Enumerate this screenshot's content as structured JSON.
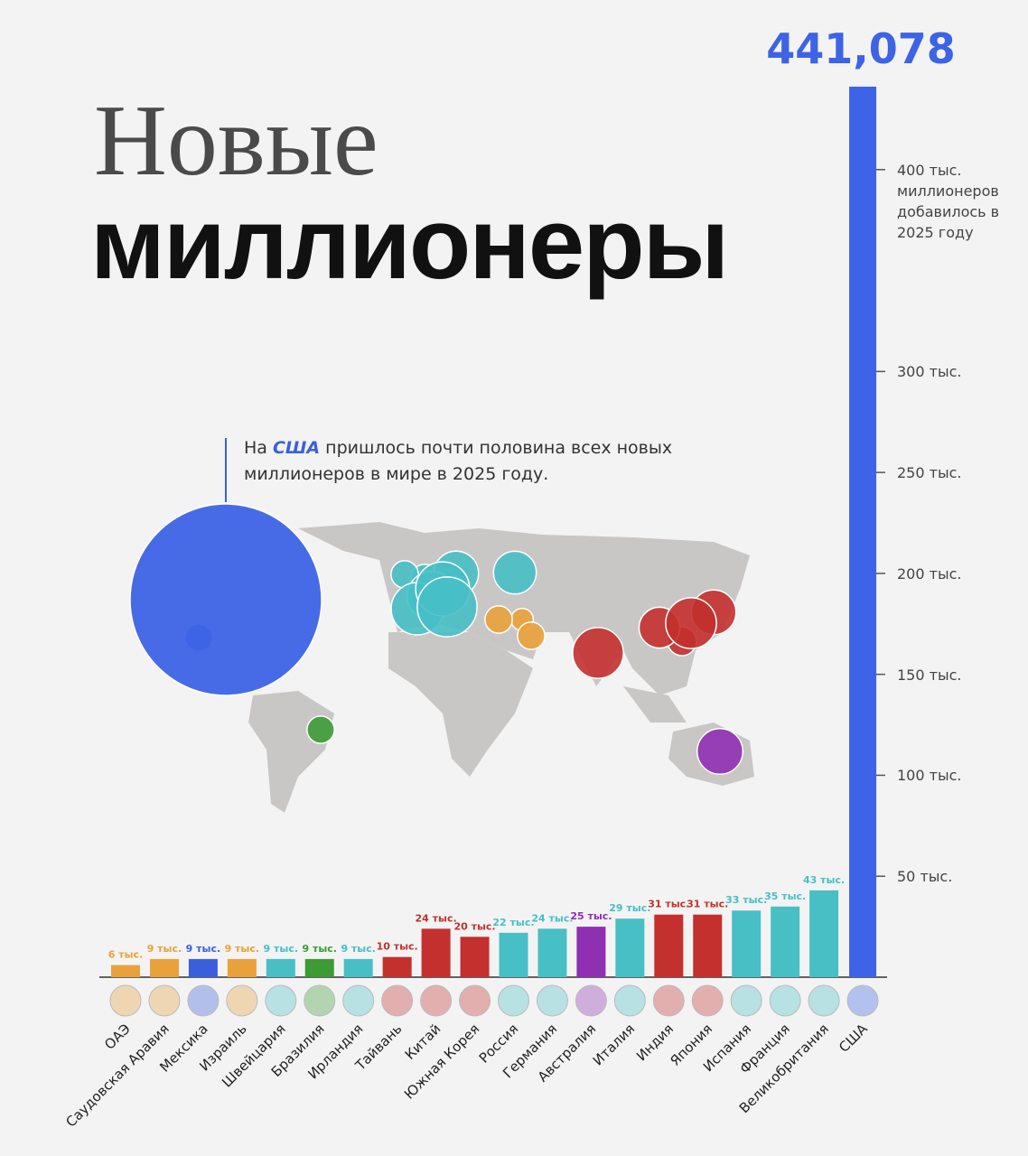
{
  "chart_data": {
    "type": "bar",
    "title": {
      "light": "Новые",
      "bold": "миллионеры"
    },
    "annotation": {
      "before": "На",
      "highlight": "США",
      "after": "пришлось почти половина всех новых миллионеров в мире в 2025 году."
    },
    "categories": [
      "ОАЭ",
      "Саудовская Аравия",
      "Мексика",
      "Израиль",
      "Швейцария",
      "Бразилия",
      "Ирландия",
      "Тайвань",
      "Китай",
      "Южная Корея",
      "Россия",
      "Германия",
      "Австралия",
      "Италия",
      "Индия",
      "Япония",
      "Испания",
      "Франция",
      "Великобритания",
      "США"
    ],
    "values": [
      6000,
      9000,
      9000,
      9000,
      9000,
      9000,
      9000,
      10000,
      24000,
      20000,
      22000,
      24000,
      25000,
      29000,
      31000,
      31000,
      33000,
      35000,
      43000,
      441078
    ],
    "value_labels": [
      "6 тыс.",
      "9 тыс.",
      "9 тыс.",
      "9 тыс.",
      "9 тыс.",
      "9 тыс.",
      "9 тыс.",
      "10 тыс.",
      "24 тыс.",
      "20 тыс.",
      "22 тыс.",
      "24 тыс.",
      "25 тыс.",
      "29 тыс.",
      "31 тыс.",
      "31 тыс.",
      "33 тыс.",
      "35 тыс.",
      "43 тыс.",
      "441,078"
    ],
    "colors": [
      "#e9a13b",
      "#e9a13b",
      "#3b5fdc",
      "#e9a13b",
      "#47bfc5",
      "#3d9a35",
      "#47bfc5",
      "#c3302e",
      "#c3302e",
      "#c3302e",
      "#47bfc5",
      "#47bfc5",
      "#8f2fb2",
      "#47bfc5",
      "#c3302e",
      "#c3302e",
      "#47bfc5",
      "#47bfc5",
      "#47bfc5",
      "#3d63e6"
    ],
    "ylim": [
      0,
      450000
    ],
    "yticks": [
      {
        "value": 50000,
        "label": "50 тыс."
      },
      {
        "value": 100000,
        "label": "100 тыс."
      },
      {
        "value": 150000,
        "label": "150 тыс."
      },
      {
        "value": 200000,
        "label": "200 тыс."
      },
      {
        "value": 250000,
        "label": "250 тыс."
      },
      {
        "value": 300000,
        "label": "300 тыс."
      },
      {
        "value": 400000,
        "label": "400 тыс. миллионеров добавилось в 2025 году"
      }
    ]
  }
}
